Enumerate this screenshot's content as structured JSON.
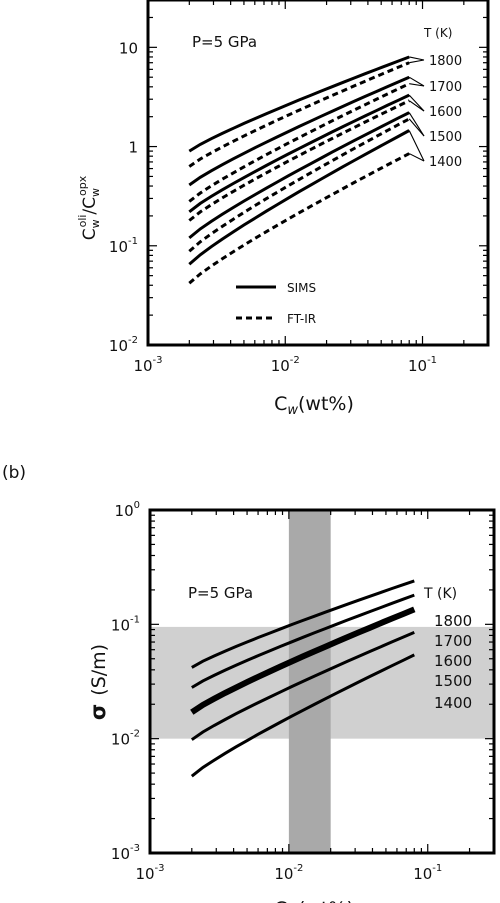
{
  "panel_b_label": "(b)",
  "chart_data": [
    {
      "type": "line",
      "panel": "a",
      "annotation": "P=5 GPa",
      "legend_title": "T (K)",
      "temperature_labels": [
        "1800",
        "1700",
        "1600",
        "1500",
        "1400"
      ],
      "xlabel": "C_w(wt%)",
      "ylabel": "C_w^oli/C_w^opx",
      "xscale": "log",
      "yscale": "log",
      "xlim": [
        0.001,
        0.3
      ],
      "ylim": [
        0.01,
        30
      ],
      "xticks": [
        {
          "value": 0.001,
          "base": "10",
          "exp": "-3"
        },
        {
          "value": 0.01,
          "base": "10",
          "exp": "-2"
        },
        {
          "value": 0.1,
          "base": "10",
          "exp": "-1"
        }
      ],
      "yticks": [
        {
          "value": 0.01,
          "base": "10",
          "exp": "-2"
        },
        {
          "value": 0.1,
          "base": "10",
          "exp": "-1"
        },
        {
          "value": 1,
          "base": "1",
          "exp": ""
        },
        {
          "value": 10,
          "base": "10",
          "exp": ""
        }
      ],
      "legend": [
        {
          "label": "SIMS",
          "style": "solid"
        },
        {
          "label": "FT-IR",
          "style": "dashed"
        }
      ],
      "x": [
        0.002,
        0.08
      ],
      "series": [
        {
          "temperature": "1800",
          "method": "SIMS",
          "values": [
            0.9,
            8.0
          ]
        },
        {
          "temperature": "1800",
          "method": "FT-IR",
          "values": [
            0.63,
            7.0
          ]
        },
        {
          "temperature": "1700",
          "method": "SIMS",
          "values": [
            0.41,
            5.0
          ]
        },
        {
          "temperature": "1700",
          "method": "FT-IR",
          "values": [
            0.28,
            4.3
          ]
        },
        {
          "temperature": "1600",
          "method": "SIMS",
          "values": [
            0.22,
            3.3
          ]
        },
        {
          "temperature": "1600",
          "method": "FT-IR",
          "values": [
            0.18,
            2.9
          ]
        },
        {
          "temperature": "1500",
          "method": "SIMS",
          "values": [
            0.12,
            2.2
          ]
        },
        {
          "temperature": "1500",
          "method": "FT-IR",
          "values": [
            0.088,
            1.9
          ]
        },
        {
          "temperature": "1400",
          "method": "SIMS",
          "values": [
            0.065,
            1.45
          ]
        },
        {
          "temperature": "1400",
          "method": "FT-IR",
          "values": [
            0.042,
            0.85
          ]
        }
      ]
    },
    {
      "type": "line",
      "panel": "b",
      "annotation": "P=5 GPa",
      "legend_title": "T (K)",
      "temperature_labels": [
        "1800",
        "1700",
        "1600",
        "1500",
        "1400"
      ],
      "xlabel": "C_w(wt%)",
      "ylabel": "σ (S/m)",
      "xscale": "log",
      "yscale": "log",
      "xlim": [
        0.001,
        0.3
      ],
      "ylim": [
        0.001,
        1
      ],
      "xticks": [
        {
          "value": 0.001,
          "base": "10",
          "exp": "-3"
        },
        {
          "value": 0.01,
          "base": "10",
          "exp": "-2"
        },
        {
          "value": 0.1,
          "base": "10",
          "exp": "-1"
        }
      ],
      "yticks": [
        {
          "value": 0.001,
          "base": "10",
          "exp": "-3"
        },
        {
          "value": 0.01,
          "base": "10",
          "exp": "-2"
        },
        {
          "value": 0.1,
          "base": "10",
          "exp": "-1"
        },
        {
          "value": 1,
          "base": "10",
          "exp": "0"
        }
      ],
      "shaded_regions": [
        {
          "axis": "y",
          "range": [
            0.01,
            0.095
          ],
          "color": "#d0d0d0"
        },
        {
          "axis": "x",
          "range": [
            0.01,
            0.02
          ],
          "color": "#a9a9a9"
        }
      ],
      "x": [
        0.002,
        0.08
      ],
      "series": [
        {
          "temperature": "1800",
          "values": [
            0.042,
            0.24
          ],
          "width": "normal"
        },
        {
          "temperature": "1700",
          "values": [
            0.028,
            0.18
          ],
          "width": "normal"
        },
        {
          "temperature": "1600",
          "values": [
            0.017,
            0.135
          ],
          "width": "thick"
        },
        {
          "temperature": "1500",
          "values": [
            0.0098,
            0.085
          ],
          "width": "normal"
        },
        {
          "temperature": "1400",
          "values": [
            0.0047,
            0.054
          ],
          "width": "normal"
        }
      ]
    }
  ]
}
